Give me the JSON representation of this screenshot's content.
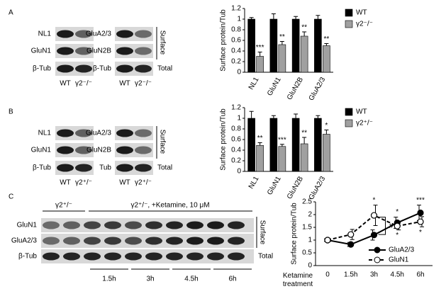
{
  "panels": [
    "A",
    "B",
    "C"
  ],
  "blots": [
    {
      "rows_left": [
        "NL1",
        "GluN1",
        "β-Tub"
      ],
      "lanes_left": [
        "WT",
        "γ2⁻/⁻"
      ],
      "rows_right": [
        "GluA2/3",
        "GluN2B",
        "β-Tub"
      ],
      "lanes_right": [
        "WT",
        "γ2⁻/⁻"
      ],
      "surface": "Surface",
      "total": "Total"
    },
    {
      "rows_left": [
        "NL1",
        "GluN1",
        "β-Tub"
      ],
      "lanes_left": [
        "WT",
        "γ2⁺/⁻"
      ],
      "rows_right": [
        "GluA2/3",
        "GluN2B",
        "Tub"
      ],
      "lanes_right": [
        "WT",
        "γ2⁺/⁻"
      ],
      "surface": "Surface",
      "total": "Total"
    }
  ],
  "blot_c": {
    "groups": [
      "γ2⁺/⁻",
      "γ2⁺/⁻, +Ketamine, 10 μM"
    ],
    "rows": [
      "GluN1",
      "GluA2/3",
      "β-Tub"
    ],
    "times": [
      "1.5h",
      "3h",
      "4.5h",
      "6h"
    ],
    "surface": "Surface",
    "total": "Total"
  },
  "chart_data": [
    {
      "type": "bar",
      "ylabel": "Surface protein/Tub",
      "categories": [
        "NL1",
        "GluN1",
        "GluN2B",
        "GluA2/3"
      ],
      "series": [
        {
          "name": "WT",
          "color": "#000000",
          "values": [
            1,
            1,
            1,
            1
          ],
          "errors": [
            0.03,
            0.1,
            0.05,
            0.07
          ]
        },
        {
          "name": "γ2⁻/⁻",
          "color": "#a0a0a0",
          "values": [
            0.3,
            0.52,
            0.68,
            0.5
          ],
          "errors": [
            0.08,
            0.06,
            0.08,
            0.04
          ],
          "value_annotations": [
            "***",
            "**",
            "**",
            "**"
          ]
        }
      ],
      "ylim": [
        0,
        1.2
      ],
      "yticks": [
        0,
        0.2,
        0.4,
        0.6,
        0.8,
        1,
        1.2
      ],
      "legend": "right"
    },
    {
      "type": "bar",
      "ylabel": "Surface protein/Tub",
      "categories": [
        "NL1",
        "GluN1",
        "GluN2B",
        "GluA2/3"
      ],
      "series": [
        {
          "name": "WT",
          "color": "#000000",
          "values": [
            1,
            1,
            1,
            1
          ],
          "errors": [
            0.13,
            0.05,
            0.08,
            0.05
          ]
        },
        {
          "name": "γ2⁺/⁻",
          "color": "#a0a0a0",
          "values": [
            0.49,
            0.47,
            0.52,
            0.7
          ],
          "errors": [
            0.05,
            0.04,
            0.12,
            0.08
          ],
          "value_annotations": [
            "**",
            "***",
            "**",
            "*"
          ]
        }
      ],
      "ylim": [
        0,
        1.2
      ],
      "yticks": [
        0,
        0.2,
        0.4,
        0.6,
        0.8,
        1,
        1.2
      ],
      "legend": "right"
    },
    {
      "type": "line",
      "ylabel": "Surface protein/Tub",
      "xlabel": "Ketamine treatment",
      "categories": [
        "0",
        "1.5h",
        "3h",
        "4.5h",
        "6h"
      ],
      "series": [
        {
          "name": "GluA2/3",
          "color": "#000000",
          "dashed": false,
          "filled": true,
          "values": [
            1,
            0.83,
            1.2,
            1.68,
            2.07
          ],
          "errors": [
            0.05,
            0.08,
            0.2,
            0.22,
            0.3
          ],
          "value_annotations": [
            null,
            null,
            null,
            "*",
            "***"
          ]
        },
        {
          "name": "GluN1",
          "color": "#000000",
          "dashed": true,
          "filled": false,
          "values": [
            1,
            1.22,
            1.97,
            1.55,
            1.72
          ],
          "errors": [
            0.05,
            0.2,
            0.4,
            0.15,
            0.2
          ],
          "value_annotations": [
            null,
            null,
            "*",
            "*",
            "*"
          ]
        }
      ],
      "bracket_label": "#",
      "ylim": [
        0,
        2.5
      ],
      "yticks": [
        0,
        0.5,
        1,
        1.5,
        2,
        2.5
      ],
      "legend": "lower right"
    }
  ]
}
